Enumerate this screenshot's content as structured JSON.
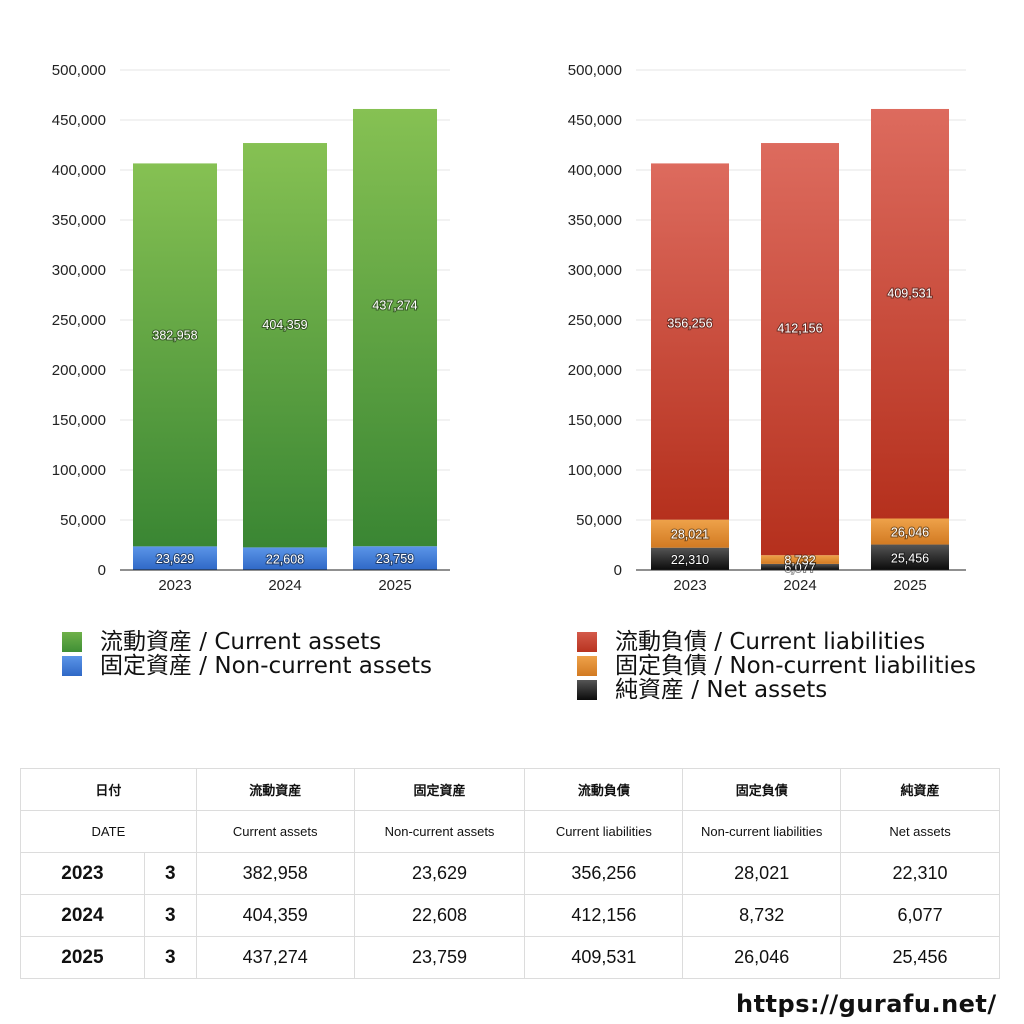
{
  "colors": {
    "current_assets": "#3f8f35",
    "current_assets_top": "#84c052",
    "non_current_assets": "#3a78d6",
    "current_liabilities": "#b83320",
    "current_liabilities_top": "#dc6a5d",
    "non_current_liabilities": "#e08a2e",
    "net_assets": "#1a1a1a"
  },
  "chart_data": [
    {
      "type": "bar",
      "stacked": true,
      "categories": [
        "2023",
        "2024",
        "2025"
      ],
      "ylim": [
        0,
        500000
      ],
      "yticks": [
        "0",
        "50,000",
        "100,000",
        "150,000",
        "200,000",
        "250,000",
        "300,000",
        "350,000",
        "400,000",
        "450,000",
        "500,000"
      ],
      "series": [
        {
          "name": "固定資産 / Non-current assets",
          "color": "#3a78d6",
          "values": [
            23629,
            22608,
            23759
          ],
          "labels": [
            "23,629",
            "22,608",
            "23,759"
          ]
        },
        {
          "name": "流動資産 / Current assets",
          "color": "#3f8f35",
          "values": [
            382958,
            404359,
            437274
          ],
          "labels": [
            "382,958",
            "404,359",
            "437,274"
          ]
        }
      ]
    },
    {
      "type": "bar",
      "stacked": true,
      "categories": [
        "2023",
        "2024",
        "2025"
      ],
      "ylim": [
        0,
        500000
      ],
      "yticks": [
        "0",
        "50,000",
        "100,000",
        "150,000",
        "200,000",
        "250,000",
        "300,000",
        "350,000",
        "400,000",
        "450,000",
        "500,000"
      ],
      "series": [
        {
          "name": "純資産 / Net assets",
          "color": "#1a1a1a",
          "values": [
            22310,
            6077,
            25456
          ],
          "labels": [
            "22,310",
            "6,077",
            "25,456"
          ]
        },
        {
          "name": "固定負債 / Non-current liabilities",
          "color": "#e08a2e",
          "values": [
            28021,
            8732,
            26046
          ],
          "labels": [
            "28,021",
            "8,732",
            "26,046"
          ]
        },
        {
          "name": "流動負債 / Current liabilities",
          "color": "#b83320",
          "values": [
            356256,
            412156,
            409531
          ],
          "labels": [
            "356,256",
            "412,156",
            "409,531"
          ]
        }
      ]
    }
  ],
  "legend_left": [
    {
      "label": "流動資産 / Current assets",
      "color": "#4f9c3e"
    },
    {
      "label": "固定資産 / Non-current assets",
      "color": "#3a78d6"
    }
  ],
  "legend_right": [
    {
      "label": "流動負債 / Current liabilities",
      "color": "#c84230"
    },
    {
      "label": "固定負債 / Non-current liabilities",
      "color": "#e08a2e"
    },
    {
      "label": "純資産 / Net assets",
      "color": "#1a1a1a"
    }
  ],
  "table": {
    "header_jp": [
      "日付",
      "流動資産",
      "固定資産",
      "流動負債",
      "固定負債",
      "純資産"
    ],
    "header_en": [
      "DATE",
      "Current assets",
      "Non-current assets",
      "Current liabilities",
      "Non-current liabilities",
      "Net assets"
    ],
    "rows": [
      {
        "year": "2023",
        "month": "3",
        "values": [
          "382,958",
          "23,629",
          "356,256",
          "28,021",
          "22,310"
        ]
      },
      {
        "year": "2024",
        "month": "3",
        "values": [
          "404,359",
          "22,608",
          "412,156",
          "8,732",
          "6,077"
        ]
      },
      {
        "year": "2025",
        "month": "3",
        "values": [
          "437,274",
          "23,759",
          "409,531",
          "26,046",
          "25,456"
        ]
      }
    ]
  },
  "site_url": "https://gurafu.net/"
}
